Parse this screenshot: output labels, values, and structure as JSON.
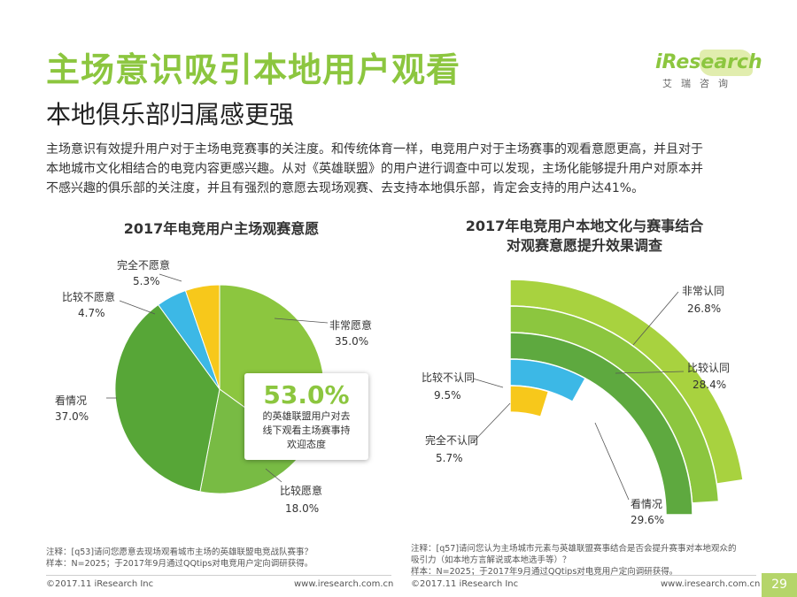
{
  "page": {
    "title": "主场意识吸引本地用户观看",
    "subtitle": "本地俱乐部归属感更强",
    "intro": [
      "主场意识有效提升用户对于主场电竞赛事的关注度。和传统体育一样，电竞用户对于主场赛事的观看意愿更高，并且对于",
      "本地城市文化相结合的电竞内容更感兴趣。从对《英雄联盟》的用户进行调查中可以发现，主场化能够提升用户对原本并",
      "不感兴趣的俱乐部的关注度，并且有强烈的意愿去现场观赛、去支持本地俱乐部，肯定会支持的用户达41%。"
    ],
    "logo": {
      "name": "iResearch",
      "sub": "艾瑞咨询"
    },
    "colors": {
      "brand_green": "#8cc63f"
    }
  },
  "chart_data": [
    {
      "type": "pie",
      "title": "2017年电竞用户主场观赛意愿",
      "slices": [
        {
          "label": "非常愿意",
          "value": 35.0,
          "value_label": "35.0%",
          "color": "#8cc63f"
        },
        {
          "label": "比较愿意",
          "value": 18.0,
          "value_label": "18.0%",
          "color": "#78bb44"
        },
        {
          "label": "看情况",
          "value": 37.0,
          "value_label": "37.0%",
          "color": "#57a637"
        },
        {
          "label": "比较不愿意",
          "value": 4.7,
          "value_label": "4.7%",
          "color": "#3cb8e6"
        },
        {
          "label": "完全不愿意",
          "value": 5.3,
          "value_label": "5.3%",
          "color": "#f7c81b"
        }
      ],
      "callout": {
        "value": "53.0%",
        "lines": [
          "的英雄联盟用户对去",
          "线下观看主场赛事持",
          "欢迎态度"
        ]
      },
      "note": [
        "注释：[q53]请问您愿意去现场观看城市主场的英雄联盟电竞战队赛事？",
        "样本：N=2025；于2017年9月通过QQtips对电竞用户定向调研获得。"
      ]
    },
    {
      "type": "radial_bar",
      "title": [
        "2017年电竞用户本地文化与赛事结合",
        "对观赛意愿提升效果调查"
      ],
      "bars": [
        {
          "label": "非常认同",
          "value": 26.8,
          "value_label": "26.8%",
          "color": "#a8d23f"
        },
        {
          "label": "比较认同",
          "value": 28.4,
          "value_label": "28.4%",
          "color": "#8cc63f"
        },
        {
          "label": "看情况",
          "value": 29.6,
          "value_label": "29.6%",
          "color": "#5ea93f"
        },
        {
          "label": "比较不认同",
          "value": 9.5,
          "value_label": "9.5%",
          "color": "#3cb8e6"
        },
        {
          "label": "完全不认同",
          "value": 5.7,
          "value_label": "5.7%",
          "color": "#f7c81b"
        }
      ],
      "note": [
        "注释：[q57]请问您认为主场城市元素与英雄联盟赛事结合是否会提升赛事对本地观众的",
        "吸引力（如本地方言解说或本地选手等）？",
        "样本：N=2025；于2017年9月通过QQtips对电竞用户定向调研获得。"
      ]
    }
  ],
  "footer": {
    "left_copyright": "©2017.11 iResearch Inc",
    "left_url": "www.iresearch.com.cn",
    "right_copyright": "©2017.11 iResearch Inc",
    "right_url": "www.iresearch.com.cn",
    "page_number": "29"
  }
}
